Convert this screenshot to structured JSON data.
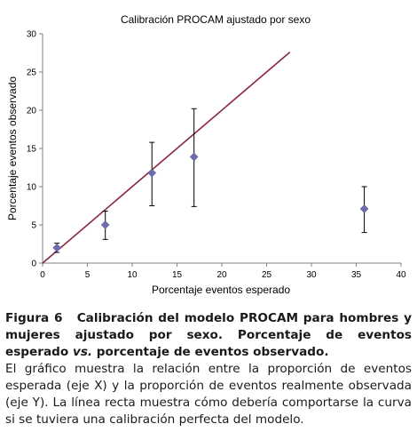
{
  "chart_data": {
    "type": "scatter",
    "title": "Calibración PROCAM  ajustado por sexo",
    "xlabel": "Porcentaje eventos esperado",
    "ylabel": "Porcentaje eventos observado",
    "xlim": [
      0,
      40
    ],
    "ylim": [
      0,
      30
    ],
    "xticks": [
      0,
      5,
      10,
      15,
      20,
      25,
      30,
      35,
      40
    ],
    "yticks": [
      0,
      5,
      10,
      15,
      20,
      25,
      30
    ],
    "grid": false,
    "legend": "none",
    "points": [
      {
        "x": 1.6,
        "y": 2.0,
        "low": 1.4,
        "high": 2.6
      },
      {
        "x": 7.0,
        "y": 5.0,
        "low": 3.1,
        "high": 6.8
      },
      {
        "x": 12.2,
        "y": 11.8,
        "low": 7.5,
        "high": 15.8
      },
      {
        "x": 16.9,
        "y": 13.9,
        "low": 7.4,
        "high": 20.2
      },
      {
        "x": 35.9,
        "y": 7.1,
        "low": 4.0,
        "high": 10.0
      }
    ],
    "reference_line": {
      "x": [
        0,
        27.6
      ],
      "y": [
        0,
        27.6
      ]
    },
    "colors": {
      "marker": "#6C6CAF",
      "reference_line": "#8B2540",
      "error_bar": "#000000",
      "axis": "#808080"
    }
  },
  "caption": {
    "figure_number": "Figura 6",
    "title_part1": "Calibración del modelo PROCAM para hombres y mujeres ajustado por sexo. Porcentaje de eventos esperado ",
    "vs": "vs.",
    "title_part2": " porcentaje de eventos observado.",
    "body": "El gráfico muestra la relación entre la proporción de eventos esperada (eje X) y la proporción de eventos realmente observada (eje Y). La línea recta muestra cómo debería comportarse la curva si se tuviera una calibración perfecta del modelo."
  }
}
